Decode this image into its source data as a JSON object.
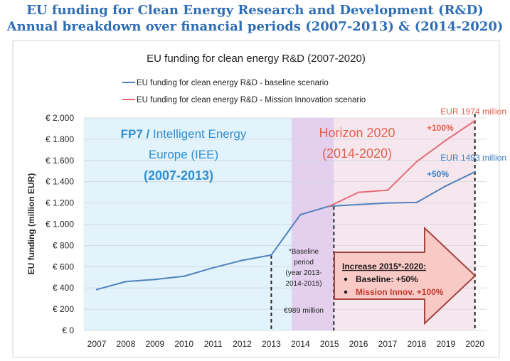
{
  "page": {
    "title_line1": "EU funding for Clean Energy Research and Development (R&D)",
    "title_line2": "Annual breakdown over financial periods (2007-2013) & (2014-2020)"
  },
  "chart_data": {
    "type": "line",
    "title": "EU funding for clean energy R&D (2007-2020)",
    "ylabel": "EU funding (million EUR)",
    "xlabel": "",
    "ylim": [
      0,
      2000
    ],
    "ytick_values": [
      0,
      200,
      400,
      600,
      800,
      1000,
      1200,
      1400,
      1600,
      1800,
      2000
    ],
    "ytick_labels": [
      "€ 0",
      "€ 200",
      "€ 400",
      "€ 600",
      "€ 800",
      "€ 1.000",
      "€ 1.200",
      "€ 1.400",
      "€ 1.600",
      "€ 1.800",
      "€ 2.000"
    ],
    "categories": [
      "2007",
      "2008",
      "2009",
      "2010",
      "2011",
      "2012",
      "2013",
      "2014",
      "2015",
      "2016",
      "2017",
      "2018",
      "2019",
      "2020"
    ],
    "legend_position": "top",
    "grid": "horizontal",
    "series": [
      {
        "name": "EU funding for clean energy R&D - baseline scenario",
        "color": "#4f81bd",
        "x": [
          2007,
          2008,
          2009,
          2010,
          2011,
          2012,
          2013,
          2014,
          2015,
          2016,
          2017,
          2018,
          2019,
          2020
        ],
        "values": [
          385,
          460,
          480,
          510,
          590,
          660,
          710,
          1090,
          1170,
          1185,
          1200,
          1205,
          1360,
          1493
        ]
      },
      {
        "name": "EU funding for clean energy R&D - Mission Innovation scenario",
        "color": "#e46c7a",
        "x": [
          2015,
          2016,
          2017,
          2018,
          2019,
          2020
        ],
        "values": [
          1170,
          1300,
          1320,
          1590,
          1790,
          1974
        ]
      }
    ],
    "regions": [
      {
        "start": 2006.55,
        "end": 2013.7,
        "color": "#e3f3fb"
      },
      {
        "start": 2013.7,
        "end": 2015.15,
        "color": "#e4d0ee"
      },
      {
        "start": 2015.15,
        "end": 2020,
        "color": "#f6e7ef"
      }
    ],
    "region_labels": {
      "fp7_line1a": "FP7 / ",
      "fp7_line1b": "Intelligent Energy",
      "fp7_line2": "Europe (IEE)",
      "fp7_line3": "(2007-2013)",
      "h2020_line1": "Horizon 2020",
      "h2020_line2": "(2014-2020)"
    },
    "baseline_note": {
      "line1": "*Baseline",
      "line2": "period",
      "line3": "(year 2013-",
      "line4": "2014-2015)",
      "amount": "€989 million"
    },
    "end_labels": {
      "mission_value": "EUR 1974 million",
      "mission_pct": "+100%",
      "baseline_value": "EUR 1493 million",
      "baseline_pct": "+50%"
    },
    "increase_box": {
      "title": "Increase 2015*-2020:",
      "bullet1": "Baseline: +50%",
      "bullet2": "Mission Innov. +100%",
      "bullet1_color": "#1a1a1a",
      "bullet2_color": "#c0392b",
      "arrow_fill": "#f9c9c6",
      "arrow_stroke": "#a0463c"
    },
    "dashed_lines_at": [
      2013,
      2015.15,
      2020
    ]
  }
}
